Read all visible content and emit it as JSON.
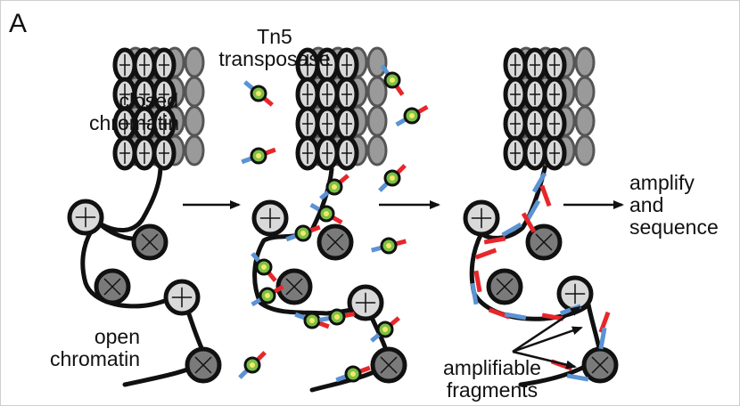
{
  "panel_letter": "A",
  "labels": {
    "closed_chromatin": [
      "closed",
      "chromatin"
    ],
    "open_chromatin": [
      "open",
      "chromatin"
    ],
    "tn5": [
      "Tn5",
      "transposase"
    ],
    "amplify": [
      "amplify",
      "and",
      "sequence"
    ],
    "fragments": [
      "amplifiable",
      "fragments"
    ]
  },
  "colors": {
    "dna": "#111111",
    "nucleosome_light": "#d9d9d9",
    "nucleosome_dark": "#7a7a7a",
    "nucleosome_back": "#9a9a9a",
    "adapter_red": "#e8262b",
    "adapter_blue": "#5b93d3",
    "tn5_green": "#7cc043",
    "tn5_yellow": "#f2e96b"
  },
  "icons": [
    "arrow-icon",
    "nucleosome-icon",
    "tn5-transposase-icon",
    "adapter-icon"
  ]
}
